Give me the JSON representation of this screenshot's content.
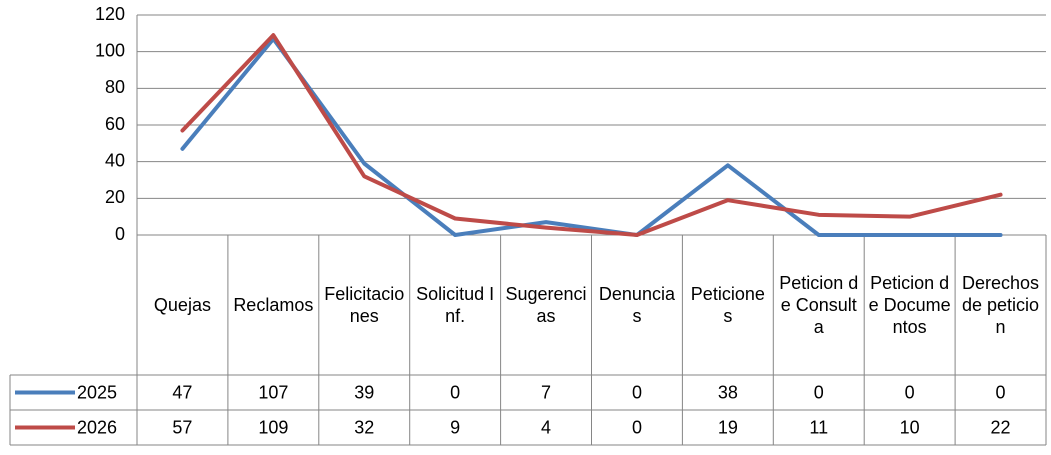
{
  "chart_data": {
    "type": "line",
    "categories": [
      "Quejas",
      "Reclamos",
      "Felicitaciones",
      "Solicitud Inf.",
      "Sugerencias",
      "Denuncias",
      "Peticiones",
      "Peticion de Consulta",
      "Peticion de Documentos",
      "Derechos de peticion"
    ],
    "series": [
      {
        "name": "2025",
        "color": "#4a7ebb",
        "values": [
          47,
          107,
          39,
          0,
          7,
          0,
          38,
          0,
          0,
          0
        ]
      },
      {
        "name": "2026",
        "color": "#be4b48",
        "values": [
          57,
          109,
          32,
          9,
          4,
          0,
          19,
          11,
          10,
          22
        ]
      }
    ],
    "ylim": [
      0,
      120
    ],
    "yticks": [
      0,
      20,
      40,
      60,
      80,
      100,
      120
    ],
    "grid": true,
    "data_table": true
  }
}
